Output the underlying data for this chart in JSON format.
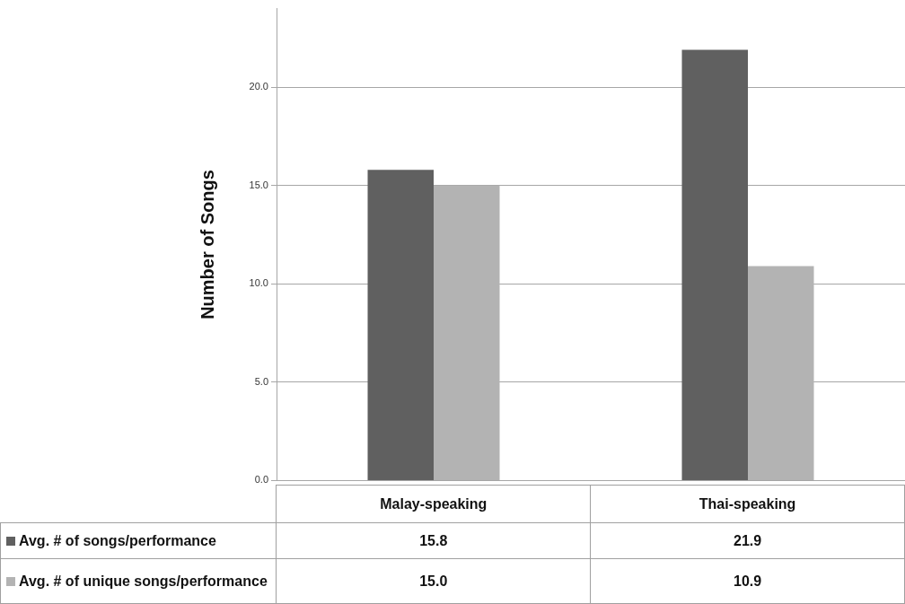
{
  "chart_data": {
    "type": "bar",
    "ylabel": "Number of Songs",
    "categories": [
      "Malay-speaking",
      "Thai-speaking"
    ],
    "series": [
      {
        "name": "Avg. # of songs/performance",
        "color": "#606060",
        "values": [
          15.8,
          21.9
        ],
        "value_labels": [
          "15.8",
          "21.9"
        ]
      },
      {
        "name": "Avg. # of unique songs/performance",
        "color": "#b3b3b3",
        "values": [
          15.0,
          10.9
        ],
        "value_labels": [
          "15.0",
          "10.9"
        ]
      }
    ],
    "ylim": [
      0,
      24
    ],
    "yticks": [
      {
        "value": 0,
        "label": "0.0"
      },
      {
        "value": 5,
        "label": "5.0"
      },
      {
        "value": 10,
        "label": "10.0"
      },
      {
        "value": 15,
        "label": "15.0"
      },
      {
        "value": 20,
        "label": "20.0"
      }
    ],
    "grid": "y",
    "legend": "bottom"
  }
}
